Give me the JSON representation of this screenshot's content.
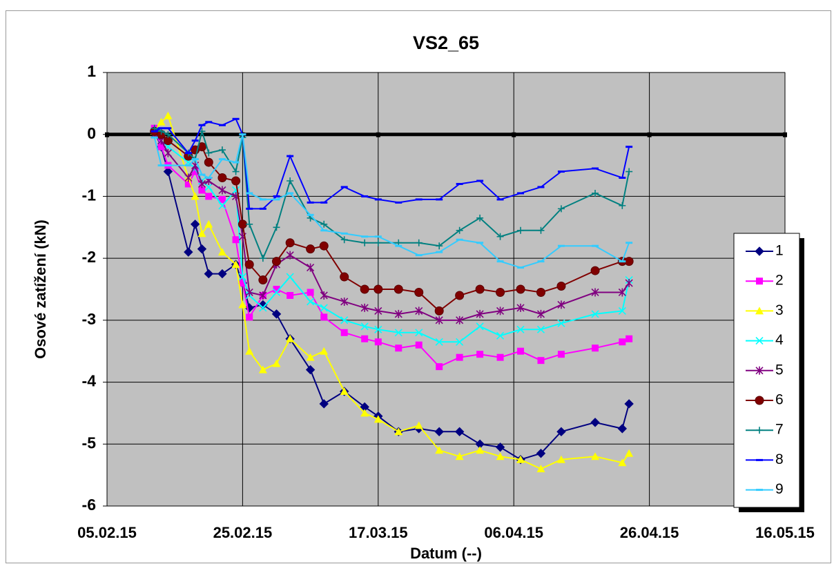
{
  "chart_data": {
    "type": "line",
    "title": "VS2_65",
    "x_label": "Datum (--)",
    "y_label": "Osové zatížení (kN)",
    "x": [
      "12.02.15",
      "13.02.15",
      "14.02.15",
      "17.02.15",
      "18.02.15",
      "19.02.15",
      "20.02.15",
      "22.02.15",
      "24.02.15",
      "25.02.15",
      "26.02.15",
      "28.02.15",
      "02.03.15",
      "04.03.15",
      "07.03.15",
      "09.03.15",
      "12.03.15",
      "15.03.15",
      "17.03.15",
      "20.03.15",
      "23.03.15",
      "26.03.15",
      "29.03.15",
      "01.04.15",
      "04.04.15",
      "07.04.15",
      "10.04.15",
      "13.04.15",
      "18.04.15",
      "22.04.15",
      "23.04.15"
    ],
    "xlim": [
      "05.02.15",
      "16.05.15"
    ],
    "xticks": [
      "05.02.15",
      "25.02.15",
      "17.03.15",
      "06.04.15",
      "26.04.15",
      "16.05.15"
    ],
    "ylim": [
      -6,
      1
    ],
    "yticks": [
      -6,
      -5,
      -4,
      -3,
      -2,
      -1,
      0,
      1
    ],
    "grid": true,
    "legend": "right",
    "series": [
      {
        "name": "1",
        "color": "#000080",
        "marker": "diamond",
        "values": [
          0.05,
          -0.2,
          -0.6,
          -1.9,
          -1.45,
          -1.85,
          -2.25,
          -2.25,
          -2.1,
          -2.4,
          -2.8,
          -2.75,
          -2.9,
          -3.3,
          -3.8,
          -4.35,
          -4.15,
          -4.4,
          -4.55,
          -4.8,
          -4.75,
          -4.8,
          -4.8,
          -5.0,
          -5.05,
          -5.25,
          -5.15,
          -4.8,
          -4.65,
          -4.75,
          -4.35
        ]
      },
      {
        "name": "2",
        "color": "#ff00ff",
        "marker": "square",
        "values": [
          0.1,
          -0.2,
          -0.5,
          -0.8,
          -0.6,
          -0.9,
          -1.0,
          -1.05,
          -1.7,
          -2.4,
          -2.95,
          -2.6,
          -2.5,
          -2.6,
          -2.55,
          -2.95,
          -3.2,
          -3.3,
          -3.35,
          -3.45,
          -3.4,
          -3.75,
          -3.6,
          -3.55,
          -3.6,
          -3.5,
          -3.65,
          -3.55,
          -3.45,
          -3.35,
          -3.3
        ]
      },
      {
        "name": "3",
        "color": "#ffff00",
        "marker": "triangle",
        "values": [
          0.05,
          0.2,
          0.3,
          -0.7,
          -1.0,
          -1.6,
          -1.45,
          -1.9,
          -2.1,
          -2.75,
          -3.5,
          -3.8,
          -3.7,
          -3.3,
          -3.6,
          -3.5,
          -4.15,
          -4.5,
          -4.6,
          -4.8,
          -4.7,
          -5.1,
          -5.2,
          -5.1,
          -5.2,
          -5.25,
          -5.4,
          -5.25,
          -5.2,
          -5.3,
          -5.15
        ]
      },
      {
        "name": "4",
        "color": "#00ffff",
        "marker": "x",
        "values": [
          0.0,
          -0.1,
          -0.2,
          -0.45,
          -0.55,
          -0.75,
          -0.85,
          -1.15,
          -0.9,
          -2.3,
          -2.6,
          -2.8,
          -2.55,
          -2.3,
          -2.7,
          -2.8,
          -3.0,
          -3.1,
          -3.15,
          -3.2,
          -3.2,
          -3.35,
          -3.35,
          -3.1,
          -3.25,
          -3.15,
          -3.15,
          -3.05,
          -2.9,
          -2.85,
          -2.35
        ]
      },
      {
        "name": "5",
        "color": "#800080",
        "marker": "asterisk",
        "values": [
          0.0,
          -0.1,
          -0.3,
          -0.7,
          -0.5,
          -0.8,
          -0.75,
          -0.9,
          -1.0,
          -1.65,
          -2.55,
          -2.6,
          -2.1,
          -1.95,
          -2.15,
          -2.6,
          -2.7,
          -2.8,
          -2.85,
          -2.9,
          -2.85,
          -3.0,
          -3.0,
          -2.9,
          -2.85,
          -2.8,
          -2.9,
          -2.75,
          -2.55,
          -2.55,
          -2.4
        ]
      },
      {
        "name": "6",
        "color": "#800000",
        "marker": "circle",
        "values": [
          0.05,
          0.0,
          -0.1,
          -0.35,
          -0.25,
          -0.2,
          -0.45,
          -0.7,
          -0.75,
          -1.45,
          -2.1,
          -2.35,
          -2.05,
          -1.75,
          -1.85,
          -1.8,
          -2.3,
          -2.5,
          -2.5,
          -2.5,
          -2.55,
          -2.85,
          -2.6,
          -2.5,
          -2.55,
          -2.5,
          -2.55,
          -2.45,
          -2.2,
          -2.05,
          -2.05
        ]
      },
      {
        "name": "7",
        "color": "#008080",
        "marker": "plus",
        "values": [
          0.1,
          0.05,
          0.0,
          -0.3,
          -0.4,
          0.05,
          -0.3,
          -0.25,
          -0.6,
          -0.05,
          -1.45,
          -2.0,
          -1.5,
          -0.75,
          -1.35,
          -1.45,
          -1.7,
          -1.75,
          -1.75,
          -1.75,
          -1.75,
          -1.8,
          -1.55,
          -1.35,
          -1.65,
          -1.55,
          -1.55,
          -1.2,
          -0.95,
          -1.15,
          -0.6
        ]
      },
      {
        "name": "8",
        "color": "#0000ff",
        "marker": "dash",
        "values": [
          0.05,
          0.1,
          0.1,
          -0.3,
          -0.1,
          0.15,
          0.2,
          0.15,
          0.25,
          0.0,
          -1.2,
          -1.2,
          -1.0,
          -0.35,
          -1.1,
          -1.1,
          -0.85,
          -1.0,
          -1.05,
          -1.1,
          -1.05,
          -1.05,
          -0.8,
          -0.75,
          -1.05,
          -0.95,
          -0.85,
          -0.6,
          -0.55,
          -0.7,
          -0.2
        ]
      },
      {
        "name": "9",
        "color": "#33ccff",
        "marker": "dash",
        "values": [
          -0.05,
          -0.5,
          -0.5,
          -0.5,
          -0.4,
          -0.65,
          -0.7,
          -0.4,
          -0.45,
          0.0,
          -0.95,
          -1.05,
          -1.05,
          -0.95,
          -1.3,
          -1.55,
          -1.6,
          -1.65,
          -1.65,
          -1.8,
          -1.95,
          -1.9,
          -1.7,
          -1.75,
          -2.05,
          -2.15,
          -2.05,
          -1.8,
          -1.8,
          -2.05,
          -1.75
        ]
      }
    ]
  }
}
